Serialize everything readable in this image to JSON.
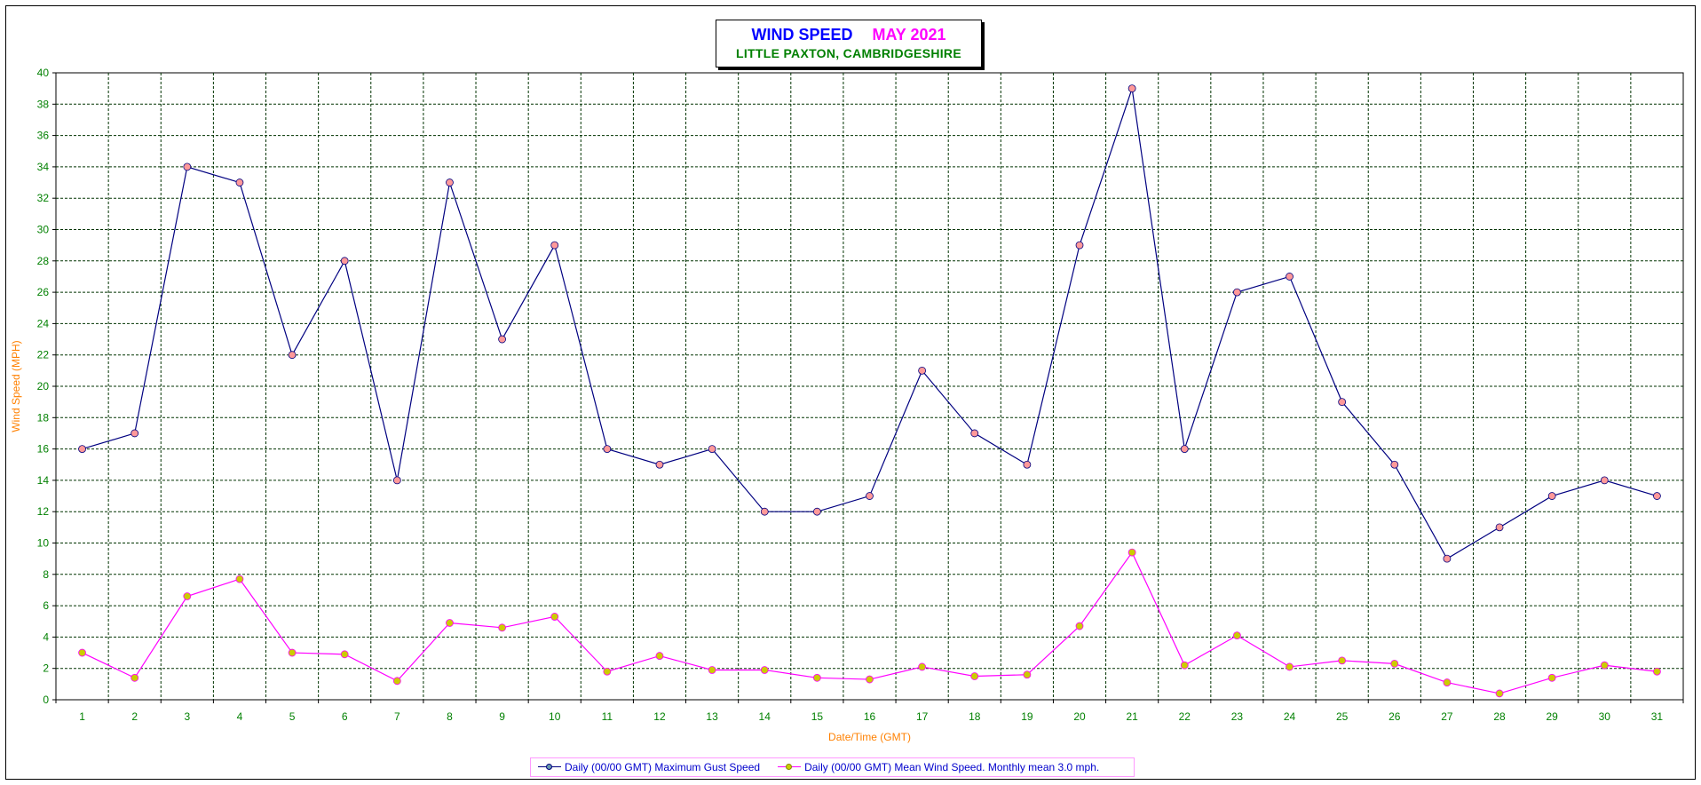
{
  "title": {
    "main": "WIND SPEED",
    "month": "MAY 2021",
    "subtitle": "LITTLE PAXTON, CAMBRIDGESHIRE"
  },
  "chart_data": {
    "type": "line",
    "title": "WIND SPEED MAY 2021",
    "subtitle": "LITTLE PAXTON, CAMBRIDGESHIRE",
    "xlabel": "Date/Time (GMT)",
    "ylabel": "Wind Speed (MPH)",
    "x": [
      1,
      2,
      3,
      4,
      5,
      6,
      7,
      8,
      9,
      10,
      11,
      12,
      13,
      14,
      15,
      16,
      17,
      18,
      19,
      20,
      21,
      22,
      23,
      24,
      25,
      26,
      27,
      28,
      29,
      30,
      31
    ],
    "ylim": [
      0,
      40
    ],
    "yticks": [
      0,
      2,
      4,
      6,
      8,
      10,
      12,
      14,
      16,
      18,
      20,
      22,
      24,
      26,
      28,
      30,
      32,
      34,
      36,
      38,
      40
    ],
    "grid": true,
    "legend_position": "bottom",
    "series": [
      {
        "name": "Daily (00/00 GMT) Maximum Gust Speed",
        "color": "#000080",
        "marker_color": "#ff9999",
        "values": [
          16,
          17,
          34,
          33,
          22,
          28,
          14,
          33,
          23,
          29,
          16,
          15,
          16,
          12,
          12,
          13,
          21,
          17,
          15,
          29,
          39,
          16,
          26,
          27,
          19,
          15,
          9,
          11,
          13,
          14,
          13
        ]
      },
      {
        "name": "Daily (00/00 GMT) Mean Wind Speed. Monthly mean 3.0 mph.",
        "color": "#ff00ff",
        "marker_color": "#cccc00",
        "values": [
          3.0,
          1.4,
          6.6,
          7.7,
          3.0,
          2.9,
          1.2,
          4.9,
          4.6,
          5.3,
          1.8,
          2.8,
          1.9,
          1.9,
          1.4,
          1.3,
          2.1,
          1.5,
          1.6,
          4.7,
          9.4,
          2.2,
          4.1,
          2.1,
          2.5,
          2.3,
          1.1,
          0.4,
          1.4,
          2.2,
          1.8
        ]
      }
    ]
  },
  "colors": {
    "grid": "#003300",
    "tick_text": "#008000",
    "axis_title": "#ff8000",
    "legend_text": "#0000cc"
  }
}
